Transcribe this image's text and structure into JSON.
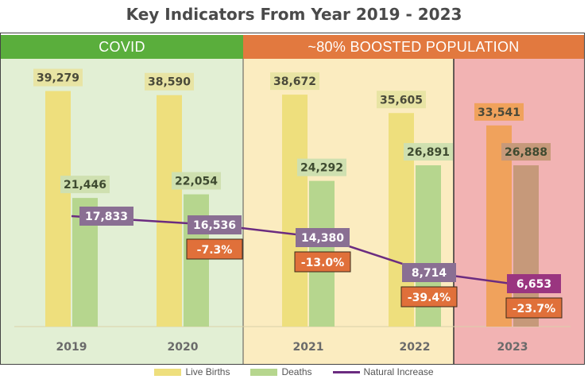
{
  "chart_data": {
    "type": "bar",
    "title": "Key Indicators From Year 2019 - 2023",
    "categories": [
      "2019",
      "2020",
      "2021",
      "2022",
      "2023"
    ],
    "series": [
      {
        "name": "Live Births",
        "values": [
          39279,
          38590,
          38672,
          35605,
          33541
        ],
        "labels": [
          "39,279",
          "38,590",
          "38,672",
          "35,605",
          "33,541"
        ]
      },
      {
        "name": "Deaths",
        "values": [
          21446,
          22054,
          24292,
          26891,
          26888
        ],
        "labels": [
          "21,446",
          "22,054",
          "24,292",
          "26,891",
          "26,888"
        ]
      },
      {
        "name": "Natural Increase",
        "type": "line",
        "values": [
          17833,
          16536,
          14380,
          8714,
          6653
        ],
        "labels": [
          "17,833",
          "16,536",
          "14,380",
          "8,714",
          "6,653"
        ]
      }
    ],
    "change_labels": [
      "",
      "-7.3%",
      "-13.0%",
      "-39.4%",
      "-23.7%"
    ],
    "bands": [
      {
        "label": "COVID",
        "color": "#5aae3c",
        "fill": "#e2efd4",
        "from": "2019",
        "to": "2020"
      },
      {
        "label": "~80% BOOSTED POPULATION",
        "color": "#e2793f",
        "fill": "#fbecc0",
        "from": "2021",
        "to": "2022"
      },
      {
        "label": "",
        "color": "",
        "fill": "#f2b3b3",
        "from": "2023",
        "to": "2023"
      }
    ],
    "colors": {
      "live_births": "#eedf7d",
      "deaths": "#b6d68e",
      "live_births_2023": "#f0a25c",
      "deaths_2023": "#c6997a",
      "line": "#6b2c80",
      "value_label_fill": "#e8e4a4",
      "deaths_label_fill": "#cfe0b0",
      "ni_label_fill": "#8a6f93",
      "ni_label_fill_2023": "#9a3580",
      "change_label_fill": "#e0703a"
    },
    "ylim": [
      0,
      42000
    ],
    "legend_position": "bottom",
    "grid": false
  }
}
